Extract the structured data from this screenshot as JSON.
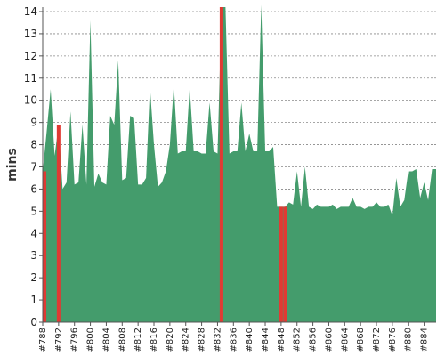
{
  "chart_data": {
    "type": "area",
    "xlabel": "",
    "ylabel": "mins",
    "ylim": [
      0,
      14.2
    ],
    "xlim": [
      788,
      887
    ],
    "grid": true,
    "yticks": [
      0,
      1,
      2,
      3,
      4,
      5,
      6,
      7,
      8,
      9,
      10,
      11,
      12,
      13,
      14
    ],
    "xticks": [
      788,
      792,
      796,
      800,
      804,
      808,
      812,
      816,
      820,
      824,
      828,
      832,
      836,
      840,
      844,
      848,
      852,
      856,
      860,
      864,
      868,
      872,
      876,
      880,
      884
    ],
    "xtick_labels": [
      "#788",
      "#792",
      "#796",
      "#800",
      "#804",
      "#808",
      "#812",
      "#816",
      "#820",
      "#824",
      "#828",
      "#832",
      "#836",
      "#840",
      "#844",
      "#848",
      "#852",
      "#856",
      "#860",
      "#864",
      "#868",
      "#872",
      "#876",
      "#880",
      "#884"
    ],
    "colors": {
      "area": "#449c6c",
      "highlight": "#e03a33",
      "grid": "#888888",
      "axis": "#555555"
    },
    "series": [
      {
        "x": [
          788,
          789,
          790,
          791,
          792,
          793,
          794,
          795,
          796,
          797,
          798,
          799,
          800,
          801,
          802,
          803,
          804,
          805,
          806,
          807,
          808,
          809,
          810,
          811,
          812,
          813,
          814,
          815,
          816,
          817,
          818,
          819,
          820,
          821,
          822,
          823,
          824,
          825,
          826,
          827,
          828,
          829,
          830,
          831,
          832,
          833,
          834,
          835,
          836,
          837,
          838,
          839,
          840,
          841,
          842,
          843,
          844,
          845,
          846,
          847,
          848,
          849,
          850,
          851,
          852,
          853,
          854,
          855,
          856,
          857,
          858,
          859,
          860,
          861,
          862,
          863,
          864,
          865,
          866,
          867,
          868,
          869,
          870,
          871,
          872,
          873,
          874,
          875,
          876,
          877,
          878,
          879,
          880,
          881,
          882,
          883,
          884,
          885,
          886,
          887
        ],
        "values": [
          6.8,
          8.6,
          10.5,
          7.5,
          8.9,
          6.0,
          6.3,
          9.5,
          6.2,
          6.3,
          8.9,
          6.2,
          13.6,
          6.1,
          6.7,
          6.3,
          6.2,
          9.3,
          8.9,
          11.8,
          6.4,
          6.5,
          9.3,
          9.2,
          6.2,
          6.2,
          6.5,
          10.6,
          8.0,
          6.1,
          6.3,
          6.8,
          8.0,
          10.7,
          7.6,
          7.7,
          7.7,
          10.6,
          7.7,
          7.7,
          7.6,
          7.6,
          9.9,
          7.7,
          7.6,
          14.2,
          14.2,
          7.6,
          7.7,
          7.7,
          9.9,
          7.7,
          8.5,
          7.7,
          7.7,
          14.3,
          7.7,
          7.7,
          7.9,
          5.2,
          5.2,
          5.2,
          5.4,
          5.3,
          6.8,
          5.2,
          7.0,
          5.2,
          5.1,
          5.3,
          5.2,
          5.2,
          5.2,
          5.3,
          5.1,
          5.2,
          5.2,
          5.2,
          5.6,
          5.2,
          5.2,
          5.1,
          5.2,
          5.2,
          5.4,
          5.2,
          5.2,
          5.3,
          4.8,
          6.5,
          5.2,
          5.5,
          6.8,
          6.8,
          6.9,
          5.6,
          6.3,
          5.5,
          6.9,
          6.9
        ]
      }
    ],
    "highlights": [
      {
        "x": 788,
        "value": 6.8
      },
      {
        "x": 792,
        "value": 8.9
      },
      {
        "x": 833,
        "value": 14.2
      },
      {
        "x": 848,
        "value": 5.2
      },
      {
        "x": 849,
        "value": 5.2
      }
    ]
  }
}
